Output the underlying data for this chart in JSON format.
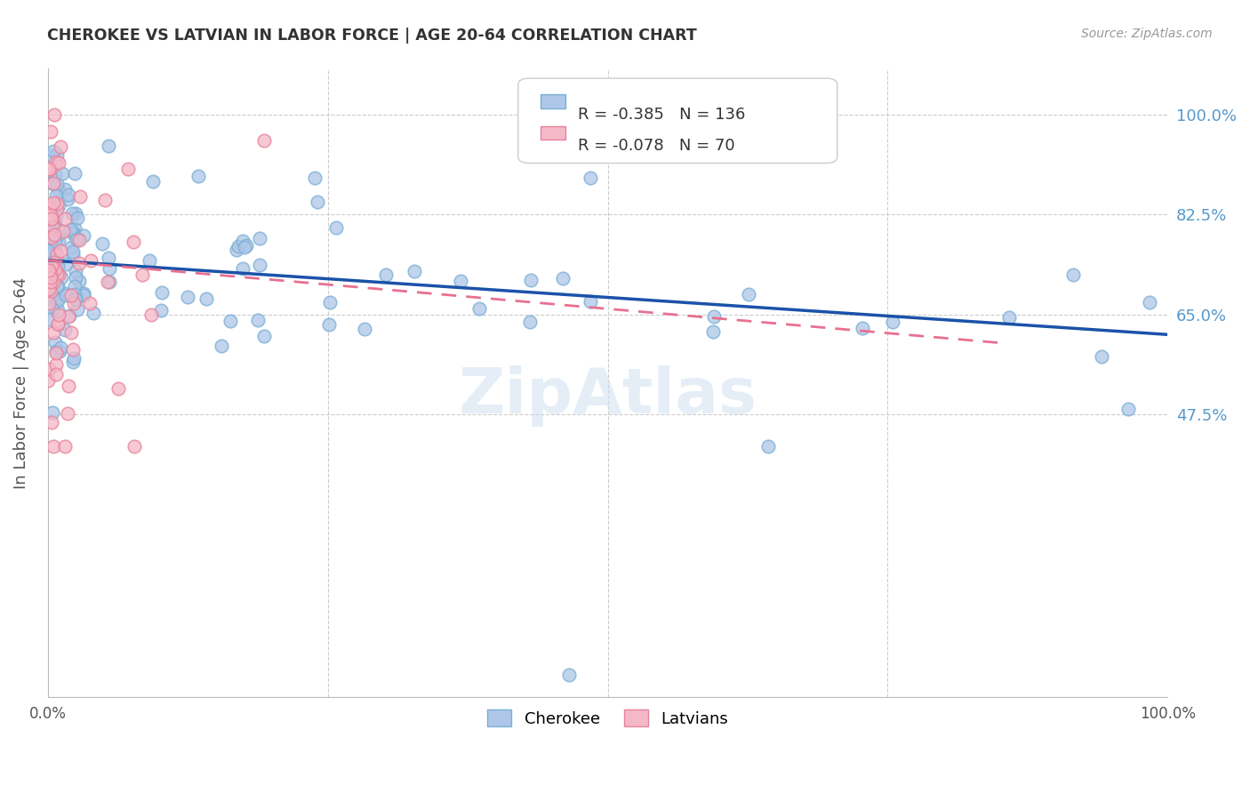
{
  "title": "CHEROKEE VS LATVIAN IN LABOR FORCE | AGE 20-64 CORRELATION CHART",
  "source": "Source: ZipAtlas.com",
  "ylabel": "In Labor Force | Age 20-64",
  "legend_blue_r": "R = -0.385",
  "legend_blue_n": "N = 136",
  "legend_pink_r": "R = -0.078",
  "legend_pink_n": "N = 70",
  "legend_label_blue": "Cherokee",
  "legend_label_pink": "Latvians",
  "blue_color": "#AEC6E8",
  "blue_edge_color": "#7AAFD4",
  "pink_color": "#F4B8C8",
  "pink_edge_color": "#E8829A",
  "trendline_blue": "#1A52A8",
  "trendline_pink": "#E87090",
  "ytick_vals": [
    0.475,
    0.65,
    0.825,
    1.0
  ],
  "ytick_labels": [
    "47.5%",
    "65.0%",
    "82.5%",
    "100.0%"
  ],
  "xlim": [
    0.0,
    1.0
  ],
  "ylim": [
    -0.02,
    1.08
  ],
  "blue_trend": [
    0.745,
    0.615
  ],
  "pink_trend": [
    0.745,
    0.575
  ],
  "watermark": "ZipAtlas",
  "watermark_color": "#D0E0F0",
  "background_color": "#FFFFFF",
  "grid_color": "#CCCCCC",
  "title_color": "#333333",
  "source_color": "#999999",
  "ylabel_color": "#555555",
  "tick_color": "#5599CC"
}
